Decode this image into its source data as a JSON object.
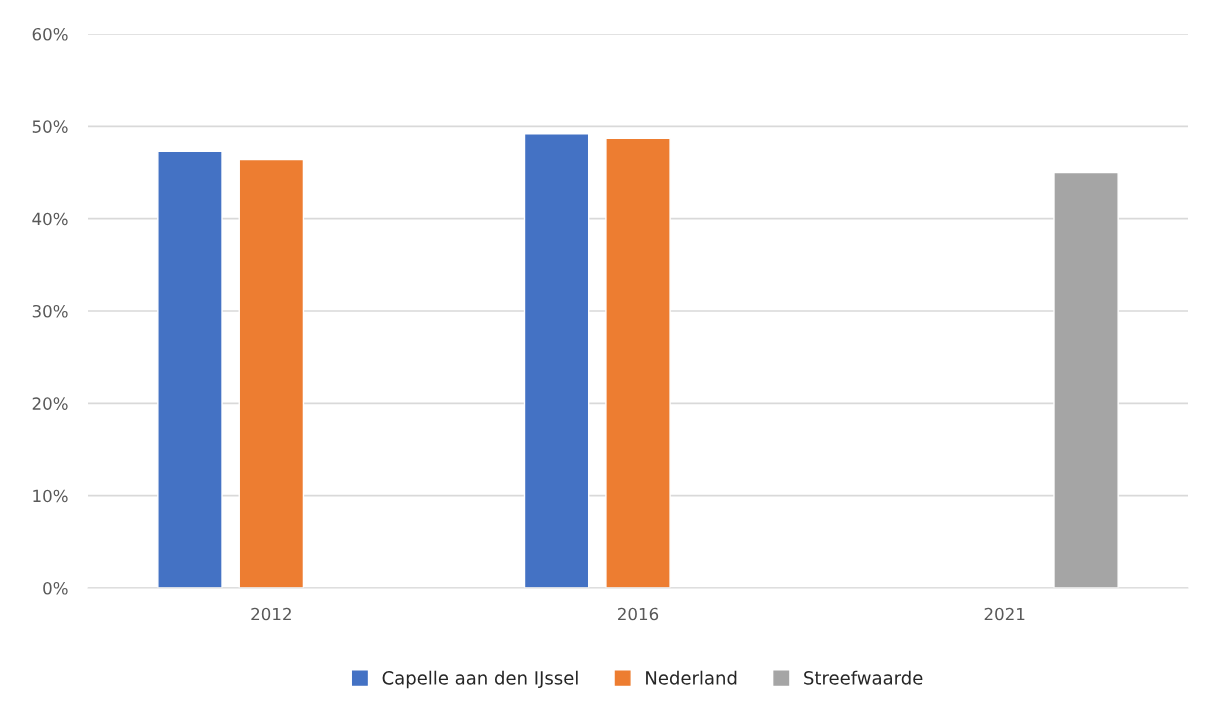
{
  "chart_data": {
    "type": "bar",
    "categories": [
      "2012",
      "2016",
      "2021"
    ],
    "series": [
      {
        "name": "Capelle aan den IJssel",
        "color": "#4472c4",
        "values": [
          47.3,
          49.2,
          null
        ]
      },
      {
        "name": "Nederland",
        "color": "#ed7d31",
        "values": [
          46.4,
          48.7,
          null
        ]
      },
      {
        "name": "Streefwaarde",
        "color": "#a5a5a5",
        "values": [
          null,
          null,
          45
        ]
      }
    ],
    "ylim": [
      0,
      60
    ],
    "yticks": [
      {
        "value": 0,
        "label": "0%"
      },
      {
        "value": 10,
        "label": "10%"
      },
      {
        "value": 20,
        "label": "20%"
      },
      {
        "value": 30,
        "label": "30%"
      },
      {
        "value": 40,
        "label": "40%"
      },
      {
        "value": 50,
        "label": "50%"
      },
      {
        "value": 60,
        "label": "60%"
      }
    ],
    "grid": "y",
    "legend": "bottom"
  }
}
